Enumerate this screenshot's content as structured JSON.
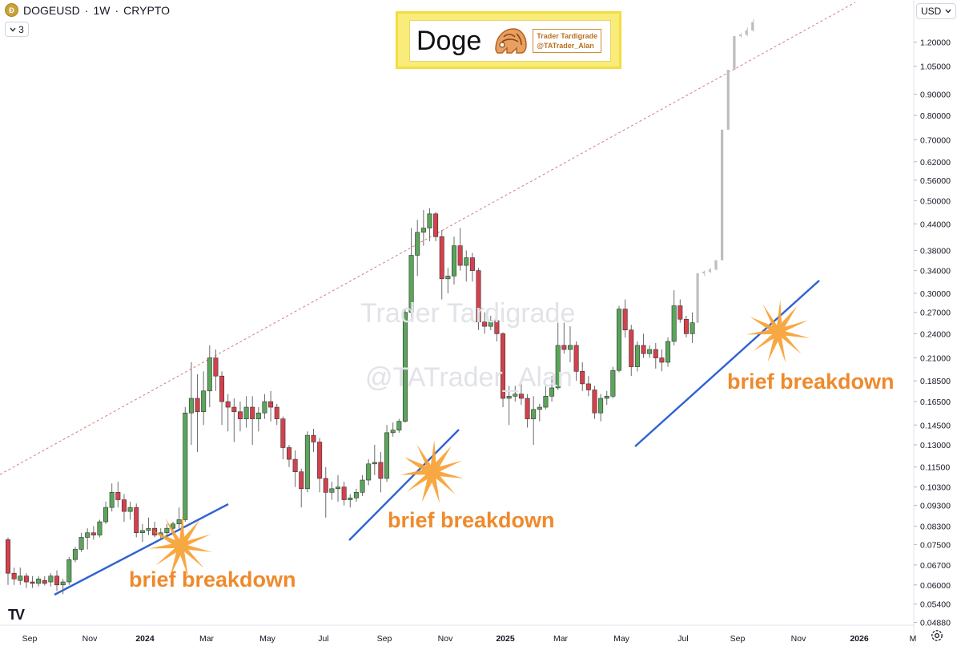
{
  "header": {
    "symbol": "DOGEUSD",
    "interval": "1W",
    "exchange": "CRYPTO",
    "separator": "·",
    "collapse_count": "3",
    "collapse_icon": "chevron-down-icon",
    "currency": "USD"
  },
  "banner": {
    "title": "Doge",
    "brand_line1": "Trader Tardigrade",
    "brand_line2": "@TATrader_Alan"
  },
  "watermark": {
    "line1": "Trader Tardigrade",
    "line2": "@TATrader_Alan"
  },
  "footer": {
    "logo": "TV",
    "settings_icon": "gear-icon"
  },
  "chart_data": {
    "type": "candlestick",
    "y_scale": "log",
    "ylim": [
      0.046,
      1.4
    ],
    "y_ticks": [
      "1.20000",
      "1.05000",
      "0.90000",
      "0.80000",
      "0.70000",
      "0.62000",
      "0.56000",
      "0.50000",
      "0.44000",
      "0.38000",
      "0.34000",
      "0.30000",
      "0.27000",
      "0.24000",
      "0.21000",
      "0.18500",
      "0.16500",
      "0.14500",
      "0.13000",
      "0.11500",
      "0.10300",
      "0.09300",
      "0.08300",
      "0.07500",
      "0.06700",
      "0.06000",
      "0.05400",
      "0.04880"
    ],
    "x_labels": [
      "Sep",
      "Nov",
      "2024",
      "Mar",
      "May",
      "Jul",
      "Sep",
      "Nov",
      "2025",
      "Mar",
      "May",
      "Jul",
      "Sep",
      "Nov",
      "2026",
      "M"
    ],
    "colors": {
      "up": "#5aa55a",
      "down": "#d4414d",
      "projection": "#bdbdbd",
      "trendline": "#2f62d3",
      "resistance": "#d77b7b",
      "annotation": "#ee8a2c"
    },
    "annotations": [
      "brief breakdown",
      "brief breakdown",
      "brief breakdown"
    ],
    "candles": [
      {
        "o": 0.077,
        "h": 0.078,
        "l": 0.06,
        "c": 0.064
      },
      {
        "o": 0.064,
        "h": 0.066,
        "l": 0.06,
        "c": 0.062
      },
      {
        "o": 0.0615,
        "h": 0.066,
        "l": 0.06,
        "c": 0.063
      },
      {
        "o": 0.063,
        "h": 0.064,
        "l": 0.059,
        "c": 0.061
      },
      {
        "o": 0.061,
        "h": 0.063,
        "l": 0.059,
        "c": 0.0605
      },
      {
        "o": 0.0605,
        "h": 0.063,
        "l": 0.0595,
        "c": 0.062
      },
      {
        "o": 0.0615,
        "h": 0.063,
        "l": 0.0598,
        "c": 0.0605
      },
      {
        "o": 0.061,
        "h": 0.064,
        "l": 0.0595,
        "c": 0.063
      },
      {
        "o": 0.063,
        "h": 0.065,
        "l": 0.058,
        "c": 0.06
      },
      {
        "o": 0.06,
        "h": 0.062,
        "l": 0.057,
        "c": 0.061
      },
      {
        "o": 0.061,
        "h": 0.07,
        "l": 0.06,
        "c": 0.069
      },
      {
        "o": 0.069,
        "h": 0.074,
        "l": 0.068,
        "c": 0.073
      },
      {
        "o": 0.073,
        "h": 0.08,
        "l": 0.072,
        "c": 0.078
      },
      {
        "o": 0.078,
        "h": 0.082,
        "l": 0.073,
        "c": 0.08
      },
      {
        "o": 0.08,
        "h": 0.083,
        "l": 0.077,
        "c": 0.079
      },
      {
        "o": 0.079,
        "h": 0.086,
        "l": 0.078,
        "c": 0.085
      },
      {
        "o": 0.085,
        "h": 0.095,
        "l": 0.084,
        "c": 0.092
      },
      {
        "o": 0.092,
        "h": 0.105,
        "l": 0.09,
        "c": 0.1
      },
      {
        "o": 0.1,
        "h": 0.106,
        "l": 0.092,
        "c": 0.096
      },
      {
        "o": 0.096,
        "h": 0.099,
        "l": 0.085,
        "c": 0.09
      },
      {
        "o": 0.09,
        "h": 0.095,
        "l": 0.086,
        "c": 0.092
      },
      {
        "o": 0.092,
        "h": 0.094,
        "l": 0.078,
        "c": 0.08
      },
      {
        "o": 0.08,
        "h": 0.084,
        "l": 0.076,
        "c": 0.081
      },
      {
        "o": 0.081,
        "h": 0.087,
        "l": 0.079,
        "c": 0.082
      },
      {
        "o": 0.082,
        "h": 0.085,
        "l": 0.078,
        "c": 0.079
      },
      {
        "o": 0.079,
        "h": 0.082,
        "l": 0.077,
        "c": 0.08
      },
      {
        "o": 0.08,
        "h": 0.084,
        "l": 0.078,
        "c": 0.082
      },
      {
        "o": 0.082,
        "h": 0.085,
        "l": 0.079,
        "c": 0.084
      },
      {
        "o": 0.084,
        "h": 0.092,
        "l": 0.082,
        "c": 0.086
      },
      {
        "o": 0.086,
        "h": 0.16,
        "l": 0.085,
        "c": 0.155
      },
      {
        "o": 0.155,
        "h": 0.205,
        "l": 0.13,
        "c": 0.168
      },
      {
        "o": 0.168,
        "h": 0.192,
        "l": 0.125,
        "c": 0.156
      },
      {
        "o": 0.156,
        "h": 0.195,
        "l": 0.145,
        "c": 0.175
      },
      {
        "o": 0.175,
        "h": 0.225,
        "l": 0.16,
        "c": 0.21
      },
      {
        "o": 0.21,
        "h": 0.22,
        "l": 0.175,
        "c": 0.19
      },
      {
        "o": 0.19,
        "h": 0.195,
        "l": 0.145,
        "c": 0.165
      },
      {
        "o": 0.165,
        "h": 0.172,
        "l": 0.14,
        "c": 0.16
      },
      {
        "o": 0.16,
        "h": 0.168,
        "l": 0.132,
        "c": 0.156
      },
      {
        "o": 0.156,
        "h": 0.165,
        "l": 0.14,
        "c": 0.15
      },
      {
        "o": 0.15,
        "h": 0.17,
        "l": 0.143,
        "c": 0.16
      },
      {
        "o": 0.16,
        "h": 0.17,
        "l": 0.13,
        "c": 0.15
      },
      {
        "o": 0.15,
        "h": 0.16,
        "l": 0.14,
        "c": 0.155
      },
      {
        "o": 0.155,
        "h": 0.172,
        "l": 0.15,
        "c": 0.165
      },
      {
        "o": 0.165,
        "h": 0.175,
        "l": 0.148,
        "c": 0.16
      },
      {
        "o": 0.16,
        "h": 0.163,
        "l": 0.145,
        "c": 0.15
      },
      {
        "o": 0.15,
        "h": 0.152,
        "l": 0.12,
        "c": 0.128
      },
      {
        "o": 0.128,
        "h": 0.13,
        "l": 0.115,
        "c": 0.12
      },
      {
        "o": 0.12,
        "h": 0.126,
        "l": 0.103,
        "c": 0.112
      },
      {
        "o": 0.112,
        "h": 0.114,
        "l": 0.092,
        "c": 0.102
      },
      {
        "o": 0.102,
        "h": 0.14,
        "l": 0.1,
        "c": 0.137
      },
      {
        "o": 0.137,
        "h": 0.142,
        "l": 0.125,
        "c": 0.132
      },
      {
        "o": 0.132,
        "h": 0.135,
        "l": 0.1,
        "c": 0.108
      },
      {
        "o": 0.108,
        "h": 0.115,
        "l": 0.087,
        "c": 0.1
      },
      {
        "o": 0.1,
        "h": 0.106,
        "l": 0.096,
        "c": 0.102
      },
      {
        "o": 0.102,
        "h": 0.11,
        "l": 0.095,
        "c": 0.103
      },
      {
        "o": 0.103,
        "h": 0.106,
        "l": 0.093,
        "c": 0.096
      },
      {
        "o": 0.096,
        "h": 0.099,
        "l": 0.092,
        "c": 0.097
      },
      {
        "o": 0.097,
        "h": 0.102,
        "l": 0.095,
        "c": 0.1
      },
      {
        "o": 0.1,
        "h": 0.11,
        "l": 0.098,
        "c": 0.107
      },
      {
        "o": 0.107,
        "h": 0.12,
        "l": 0.104,
        "c": 0.117
      },
      {
        "o": 0.117,
        "h": 0.13,
        "l": 0.11,
        "c": 0.118
      },
      {
        "o": 0.118,
        "h": 0.125,
        "l": 0.1,
        "c": 0.108
      },
      {
        "o": 0.108,
        "h": 0.145,
        "l": 0.106,
        "c": 0.139
      },
      {
        "o": 0.139,
        "h": 0.147,
        "l": 0.136,
        "c": 0.141
      },
      {
        "o": 0.141,
        "h": 0.15,
        "l": 0.139,
        "c": 0.148
      },
      {
        "o": 0.148,
        "h": 0.275,
        "l": 0.147,
        "c": 0.27
      },
      {
        "o": 0.27,
        "h": 0.43,
        "l": 0.26,
        "c": 0.37
      },
      {
        "o": 0.37,
        "h": 0.45,
        "l": 0.33,
        "c": 0.42
      },
      {
        "o": 0.42,
        "h": 0.475,
        "l": 0.39,
        "c": 0.43
      },
      {
        "o": 0.43,
        "h": 0.48,
        "l": 0.4,
        "c": 0.465
      },
      {
        "o": 0.465,
        "h": 0.47,
        "l": 0.4,
        "c": 0.41
      },
      {
        "o": 0.41,
        "h": 0.425,
        "l": 0.29,
        "c": 0.325
      },
      {
        "o": 0.325,
        "h": 0.345,
        "l": 0.3,
        "c": 0.33
      },
      {
        "o": 0.33,
        "h": 0.41,
        "l": 0.315,
        "c": 0.39
      },
      {
        "o": 0.39,
        "h": 0.43,
        "l": 0.34,
        "c": 0.35
      },
      {
        "o": 0.35,
        "h": 0.38,
        "l": 0.32,
        "c": 0.365
      },
      {
        "o": 0.365,
        "h": 0.375,
        "l": 0.32,
        "c": 0.34
      },
      {
        "o": 0.34,
        "h": 0.345,
        "l": 0.245,
        "c": 0.256
      },
      {
        "o": 0.256,
        "h": 0.27,
        "l": 0.24,
        "c": 0.25
      },
      {
        "o": 0.25,
        "h": 0.265,
        "l": 0.245,
        "c": 0.258
      },
      {
        "o": 0.258,
        "h": 0.262,
        "l": 0.23,
        "c": 0.24
      },
      {
        "o": 0.24,
        "h": 0.242,
        "l": 0.16,
        "c": 0.168
      },
      {
        "o": 0.168,
        "h": 0.18,
        "l": 0.145,
        "c": 0.17
      },
      {
        "o": 0.17,
        "h": 0.18,
        "l": 0.165,
        "c": 0.172
      },
      {
        "o": 0.172,
        "h": 0.185,
        "l": 0.162,
        "c": 0.168
      },
      {
        "o": 0.168,
        "h": 0.172,
        "l": 0.143,
        "c": 0.15
      },
      {
        "o": 0.15,
        "h": 0.17,
        "l": 0.13,
        "c": 0.158
      },
      {
        "o": 0.158,
        "h": 0.163,
        "l": 0.148,
        "c": 0.16
      },
      {
        "o": 0.16,
        "h": 0.18,
        "l": 0.158,
        "c": 0.17
      },
      {
        "o": 0.17,
        "h": 0.19,
        "l": 0.165,
        "c": 0.178
      },
      {
        "o": 0.178,
        "h": 0.255,
        "l": 0.176,
        "c": 0.225
      },
      {
        "o": 0.225,
        "h": 0.255,
        "l": 0.215,
        "c": 0.22
      },
      {
        "o": 0.22,
        "h": 0.25,
        "l": 0.205,
        "c": 0.225
      },
      {
        "o": 0.225,
        "h": 0.23,
        "l": 0.185,
        "c": 0.195
      },
      {
        "o": 0.195,
        "h": 0.205,
        "l": 0.175,
        "c": 0.182
      },
      {
        "o": 0.182,
        "h": 0.19,
        "l": 0.17,
        "c": 0.176
      },
      {
        "o": 0.176,
        "h": 0.18,
        "l": 0.15,
        "c": 0.155
      },
      {
        "o": 0.155,
        "h": 0.172,
        "l": 0.148,
        "c": 0.168
      },
      {
        "o": 0.168,
        "h": 0.175,
        "l": 0.162,
        "c": 0.17
      },
      {
        "o": 0.17,
        "h": 0.2,
        "l": 0.168,
        "c": 0.196
      },
      {
        "o": 0.196,
        "h": 0.28,
        "l": 0.194,
        "c": 0.275
      },
      {
        "o": 0.275,
        "h": 0.29,
        "l": 0.235,
        "c": 0.245
      },
      {
        "o": 0.245,
        "h": 0.252,
        "l": 0.19,
        "c": 0.2
      },
      {
        "o": 0.2,
        "h": 0.23,
        "l": 0.195,
        "c": 0.225
      },
      {
        "o": 0.225,
        "h": 0.24,
        "l": 0.21,
        "c": 0.215
      },
      {
        "o": 0.215,
        "h": 0.225,
        "l": 0.21,
        "c": 0.22
      },
      {
        "o": 0.22,
        "h": 0.228,
        "l": 0.198,
        "c": 0.21
      },
      {
        "o": 0.21,
        "h": 0.22,
        "l": 0.195,
        "c": 0.205
      },
      {
        "o": 0.205,
        "h": 0.235,
        "l": 0.2,
        "c": 0.23
      },
      {
        "o": 0.23,
        "h": 0.305,
        "l": 0.225,
        "c": 0.28
      },
      {
        "o": 0.28,
        "h": 0.29,
        "l": 0.255,
        "c": 0.26
      },
      {
        "o": 0.26,
        "h": 0.265,
        "l": 0.235,
        "c": 0.24
      },
      {
        "o": 0.24,
        "h": 0.27,
        "l": 0.228,
        "c": 0.255
      }
    ],
    "projection": [
      {
        "o": 0.255,
        "h": 0.335,
        "l": 0.255,
        "c": 0.335
      },
      {
        "o": 0.335,
        "h": 0.34,
        "l": 0.33,
        "c": 0.338
      },
      {
        "o": 0.338,
        "h": 0.345,
        "l": 0.335,
        "c": 0.342
      },
      {
        "o": 0.342,
        "h": 0.36,
        "l": 0.34,
        "c": 0.36
      },
      {
        "o": 0.36,
        "h": 0.74,
        "l": 0.36,
        "c": 0.74
      },
      {
        "o": 0.74,
        "h": 1.03,
        "l": 0.74,
        "c": 1.03
      },
      {
        "o": 1.03,
        "h": 1.24,
        "l": 1.03,
        "c": 1.24
      },
      {
        "o": 1.24,
        "h": 1.26,
        "l": 1.23,
        "c": 1.25
      },
      {
        "o": 1.25,
        "h": 1.3,
        "l": 1.24,
        "c": 1.28
      },
      {
        "o": 1.28,
        "h": 1.36,
        "l": 1.27,
        "c": 1.34
      }
    ]
  }
}
